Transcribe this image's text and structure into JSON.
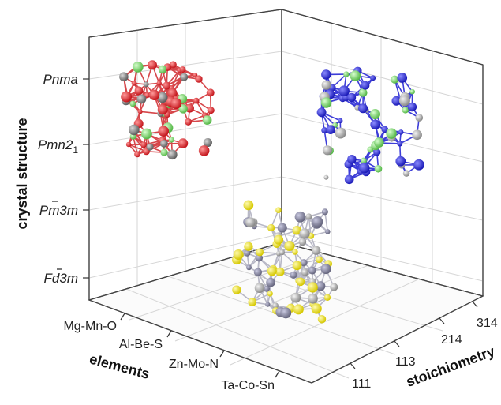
{
  "axes": {
    "z_title": "crystal structure",
    "x_title": "elements",
    "y_title": "stoichiometry",
    "z_ticks": [
      {
        "base": "Pnma",
        "sub": ""
      },
      {
        "base": "Pmn2",
        "sub": "1"
      },
      {
        "base": "Pm3m",
        "sub": ""
      },
      {
        "base": "Fd3m",
        "sub": ""
      }
    ],
    "x_ticks": [
      "Mg-Mn-O",
      "Al-Be-S",
      "Zn-Mo-N",
      "Ta-Co-Sn"
    ],
    "y_ticks": [
      "314",
      "214",
      "113",
      "111"
    ]
  },
  "structures": [
    {
      "name": "red-green-structure",
      "x": "Mg-Mn-O",
      "z": "Pnma",
      "colors": [
        "#e0262b",
        "#808080",
        "#7ed36f"
      ]
    },
    {
      "name": "blue-green-structure",
      "x": "Mg-Mn-O",
      "y": "314",
      "colors": [
        "#2a2ad6",
        "#9a9a9a",
        "#7ed36f"
      ]
    },
    {
      "name": "yellow-gray-structure",
      "z": "Fd3m",
      "colors": [
        "#f2ea1f",
        "#8e8e9a",
        "#b9b9c6"
      ]
    }
  ]
}
